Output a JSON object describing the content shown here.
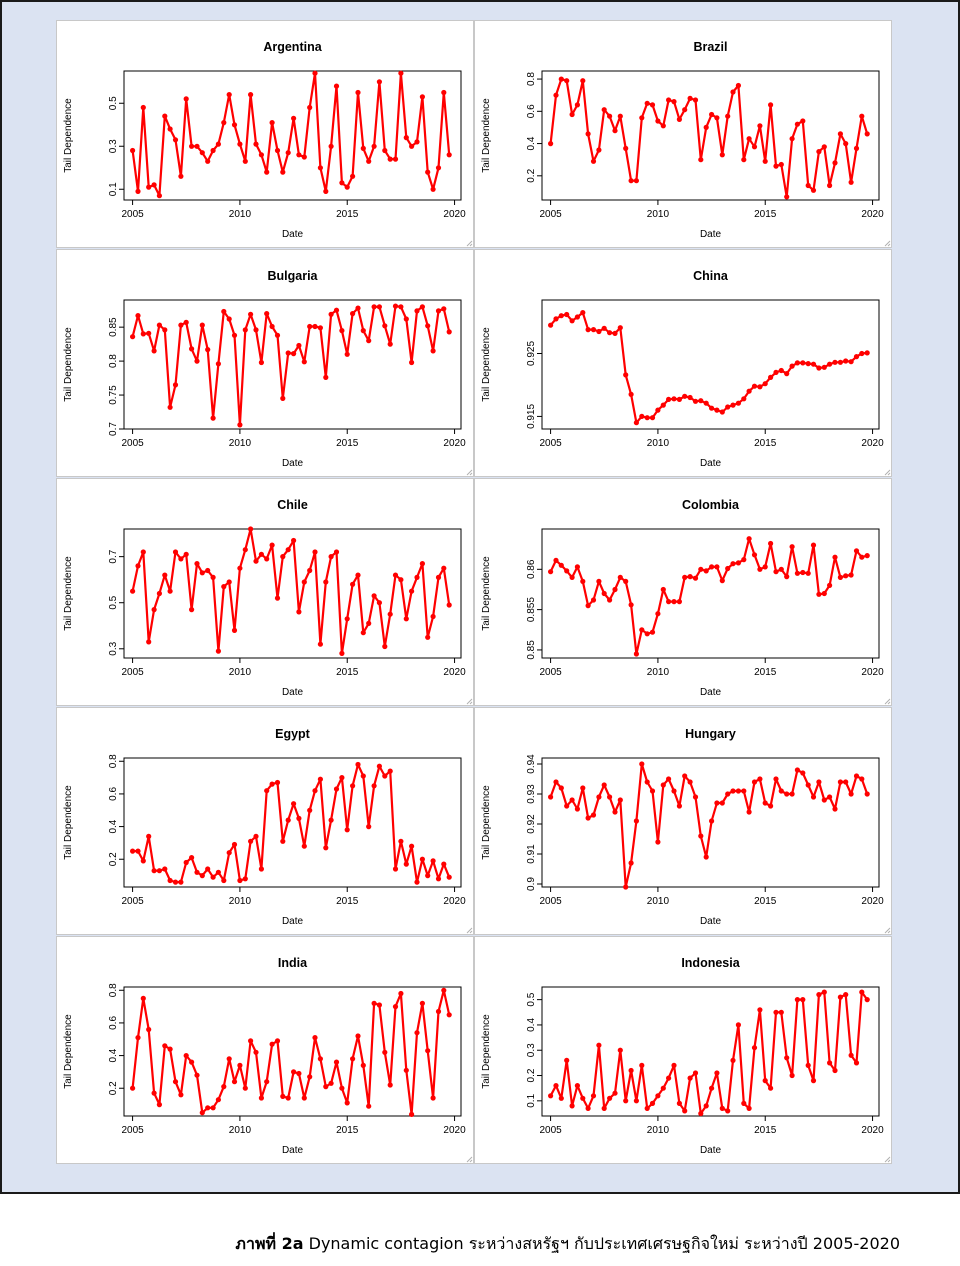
{
  "caption": {
    "label": "ภาพที่ 2a",
    "text": "Dynamic contagion ระหว่างสหรัฐฯ กับประเทศเศรษฐกิจใหม่ ระหว่างปี 2005-2020"
  },
  "chart_data": [
    {
      "type": "line",
      "title": "Argentina",
      "xlabel": "Date",
      "ylabel": "Tail Dependence",
      "xlim": [
        2004.6,
        2020.3
      ],
      "ylim": [
        0.05,
        0.65
      ],
      "xticks": [
        2005,
        2010,
        2015,
        2020
      ],
      "yticks": [
        0.1,
        0.3,
        0.5
      ],
      "x_start": 2005.0,
      "x_step": 0.25,
      "series": [
        {
          "color": "#ff0000",
          "values": [
            0.28,
            0.09,
            0.48,
            0.11,
            0.12,
            0.07,
            0.44,
            0.38,
            0.33,
            0.16,
            0.52,
            0.3,
            0.3,
            0.27,
            0.23,
            0.28,
            0.31,
            0.41,
            0.54,
            0.4,
            0.31,
            0.23,
            0.54,
            0.31,
            0.26,
            0.18,
            0.41,
            0.28,
            0.18,
            0.27,
            0.43,
            0.26,
            0.25,
            0.48,
            0.64,
            0.2,
            0.09,
            0.3,
            0.58,
            0.13,
            0.11,
            0.16,
            0.55,
            0.29,
            0.23,
            0.3,
            0.6,
            0.28,
            0.24,
            0.24,
            0.64,
            0.34,
            0.3,
            0.32,
            0.53,
            0.18,
            0.1,
            0.2,
            0.55,
            0.26
          ]
        }
      ]
    },
    {
      "type": "line",
      "title": "Brazil",
      "xlabel": "Date",
      "ylabel": "Tail Dependence",
      "xlim": [
        2004.6,
        2020.3
      ],
      "ylim": [
        0.05,
        0.85
      ],
      "xticks": [
        2005,
        2010,
        2015,
        2020
      ],
      "yticks": [
        0.2,
        0.4,
        0.6,
        0.8
      ],
      "x_start": 2005.0,
      "x_step": 0.25,
      "series": [
        {
          "color": "#ff0000",
          "values": [
            0.4,
            0.7,
            0.8,
            0.79,
            0.58,
            0.64,
            0.79,
            0.46,
            0.29,
            0.36,
            0.61,
            0.57,
            0.48,
            0.57,
            0.37,
            0.17,
            0.17,
            0.56,
            0.65,
            0.64,
            0.54,
            0.51,
            0.67,
            0.66,
            0.55,
            0.61,
            0.68,
            0.67,
            0.3,
            0.5,
            0.58,
            0.56,
            0.33,
            0.57,
            0.72,
            0.76,
            0.3,
            0.43,
            0.38,
            0.51,
            0.29,
            0.64,
            0.26,
            0.27,
            0.07,
            0.43,
            0.52,
            0.54,
            0.14,
            0.11,
            0.35,
            0.38,
            0.14,
            0.28,
            0.46,
            0.4,
            0.16,
            0.37,
            0.57,
            0.46
          ]
        }
      ]
    },
    {
      "type": "line",
      "title": "Bulgaria",
      "xlabel": "Date",
      "ylabel": "Tail Dependence",
      "xlim": [
        2004.6,
        2020.3
      ],
      "ylim": [
        0.7,
        0.89
      ],
      "xticks": [
        2005,
        2010,
        2015,
        2020
      ],
      "yticks": [
        0.7,
        0.75,
        0.8,
        0.85
      ],
      "x_start": 2005.0,
      "x_step": 0.25,
      "series": [
        {
          "color": "#ff0000",
          "values": [
            0.836,
            0.867,
            0.84,
            0.841,
            0.815,
            0.853,
            0.846,
            0.732,
            0.765,
            0.853,
            0.857,
            0.818,
            0.8,
            0.853,
            0.817,
            0.716,
            0.796,
            0.873,
            0.862,
            0.838,
            0.706,
            0.846,
            0.869,
            0.846,
            0.798,
            0.87,
            0.851,
            0.838,
            0.745,
            0.812,
            0.811,
            0.823,
            0.799,
            0.851,
            0.851,
            0.849,
            0.776,
            0.869,
            0.875,
            0.845,
            0.81,
            0.87,
            0.878,
            0.845,
            0.83,
            0.88,
            0.88,
            0.852,
            0.825,
            0.881,
            0.88,
            0.862,
            0.798,
            0.874,
            0.88,
            0.852,
            0.815,
            0.874,
            0.877,
            0.843
          ]
        }
      ]
    },
    {
      "type": "line",
      "title": "China",
      "xlabel": "Date",
      "ylabel": "Tail Dependence",
      "xlim": [
        2004.6,
        2020.3
      ],
      "ylim": [
        0.913,
        0.9335
      ],
      "xticks": [
        2005,
        2010,
        2015,
        2020
      ],
      "yticks": [
        0.915,
        0.925
      ],
      "x_start": 2005.0,
      "x_step": 0.25,
      "series": [
        {
          "color": "#ff0000",
          "values": [
            0.9295,
            0.9305,
            0.931,
            0.9312,
            0.9302,
            0.9308,
            0.9315,
            0.9288,
            0.9288,
            0.9285,
            0.929,
            0.9283,
            0.9282,
            0.9291,
            0.9216,
            0.9185,
            0.914,
            0.915,
            0.9148,
            0.9148,
            0.916,
            0.9168,
            0.9177,
            0.9178,
            0.9177,
            0.9182,
            0.918,
            0.9174,
            0.9175,
            0.9171,
            0.9163,
            0.916,
            0.9157,
            0.9165,
            0.9168,
            0.9171,
            0.9178,
            0.919,
            0.9198,
            0.9197,
            0.9202,
            0.9212,
            0.922,
            0.9223,
            0.9218,
            0.923,
            0.9235,
            0.9235,
            0.9234,
            0.9233,
            0.9227,
            0.9228,
            0.9233,
            0.9236,
            0.9236,
            0.9238,
            0.9237,
            0.9245,
            0.925,
            0.9251
          ]
        }
      ]
    },
    {
      "type": "line",
      "title": "Chile",
      "xlabel": "Date",
      "ylabel": "Tail Dependence",
      "xlim": [
        2004.6,
        2020.3
      ],
      "ylim": [
        0.26,
        0.82
      ],
      "xticks": [
        2005,
        2010,
        2015,
        2020
      ],
      "yticks": [
        0.3,
        0.5,
        0.7
      ],
      "x_start": 2005.0,
      "x_step": 0.25,
      "series": [
        {
          "color": "#ff0000",
          "values": [
            0.55,
            0.66,
            0.72,
            0.33,
            0.47,
            0.54,
            0.62,
            0.55,
            0.72,
            0.69,
            0.71,
            0.47,
            0.67,
            0.63,
            0.64,
            0.61,
            0.29,
            0.57,
            0.59,
            0.38,
            0.65,
            0.73,
            0.82,
            0.68,
            0.71,
            0.69,
            0.75,
            0.52,
            0.7,
            0.73,
            0.77,
            0.46,
            0.59,
            0.64,
            0.72,
            0.32,
            0.59,
            0.7,
            0.72,
            0.28,
            0.43,
            0.58,
            0.62,
            0.37,
            0.41,
            0.53,
            0.5,
            0.31,
            0.45,
            0.62,
            0.6,
            0.43,
            0.55,
            0.61,
            0.67,
            0.35,
            0.44,
            0.61,
            0.65,
            0.49
          ]
        }
      ]
    },
    {
      "type": "line",
      "title": "Colombia",
      "xlabel": "Date",
      "ylabel": "Tail Dependence",
      "xlim": [
        2004.6,
        2020.3
      ],
      "ylim": [
        0.849,
        0.865
      ],
      "xticks": [
        2005,
        2010,
        2015,
        2020
      ],
      "yticks": [
        0.85,
        0.855,
        0.86
      ],
      "x_start": 2005.0,
      "x_step": 0.25,
      "series": [
        {
          "color": "#ff0000",
          "values": [
            0.8597,
            0.8611,
            0.8605,
            0.8598,
            0.859,
            0.8603,
            0.8585,
            0.8555,
            0.8562,
            0.8585,
            0.857,
            0.8562,
            0.8575,
            0.859,
            0.8585,
            0.8556,
            0.8495,
            0.8525,
            0.852,
            0.8522,
            0.8545,
            0.8575,
            0.856,
            0.856,
            0.856,
            0.859,
            0.8591,
            0.8589,
            0.86,
            0.8598,
            0.8603,
            0.8603,
            0.8586,
            0.8601,
            0.8607,
            0.8608,
            0.8612,
            0.8638,
            0.8618,
            0.86,
            0.8603,
            0.8632,
            0.8597,
            0.86,
            0.8591,
            0.8628,
            0.8595,
            0.8596,
            0.8595,
            0.863,
            0.8569,
            0.857,
            0.858,
            0.8615,
            0.859,
            0.8592,
            0.8593,
            0.8623,
            0.8615,
            0.8617
          ]
        }
      ]
    },
    {
      "type": "line",
      "title": "Egypt",
      "xlabel": "Date",
      "ylabel": "Tail Dependence",
      "xlim": [
        2004.6,
        2020.3
      ],
      "ylim": [
        0.03,
        0.82
      ],
      "xticks": [
        2005,
        2010,
        2015,
        2020
      ],
      "yticks": [
        0.2,
        0.4,
        0.6,
        0.8
      ],
      "x_start": 2005.0,
      "x_step": 0.25,
      "series": [
        {
          "color": "#ff0000",
          "values": [
            0.25,
            0.25,
            0.19,
            0.34,
            0.13,
            0.13,
            0.14,
            0.07,
            0.06,
            0.06,
            0.18,
            0.21,
            0.12,
            0.1,
            0.14,
            0.09,
            0.12,
            0.07,
            0.24,
            0.29,
            0.07,
            0.08,
            0.31,
            0.34,
            0.14,
            0.62,
            0.66,
            0.67,
            0.31,
            0.44,
            0.54,
            0.45,
            0.28,
            0.5,
            0.62,
            0.69,
            0.27,
            0.44,
            0.63,
            0.7,
            0.38,
            0.65,
            0.78,
            0.71,
            0.4,
            0.65,
            0.77,
            0.71,
            0.74,
            0.14,
            0.31,
            0.17,
            0.28,
            0.06,
            0.2,
            0.1,
            0.19,
            0.08,
            0.17,
            0.09
          ]
        }
      ]
    },
    {
      "type": "line",
      "title": "Hungary",
      "xlabel": "Date",
      "ylabel": "Tail Dependence",
      "xlim": [
        2004.6,
        2020.3
      ],
      "ylim": [
        0.899,
        0.942
      ],
      "xticks": [
        2005,
        2010,
        2015,
        2020
      ],
      "yticks": [
        0.9,
        0.91,
        0.92,
        0.93,
        0.94
      ],
      "x_start": 2005.0,
      "x_step": 0.25,
      "series": [
        {
          "color": "#ff0000",
          "values": [
            0.929,
            0.934,
            0.932,
            0.926,
            0.928,
            0.925,
            0.932,
            0.922,
            0.923,
            0.929,
            0.933,
            0.929,
            0.924,
            0.928,
            0.899,
            0.907,
            0.921,
            0.94,
            0.934,
            0.931,
            0.914,
            0.933,
            0.935,
            0.931,
            0.926,
            0.936,
            0.934,
            0.929,
            0.916,
            0.909,
            0.921,
            0.927,
            0.927,
            0.93,
            0.931,
            0.931,
            0.931,
            0.924,
            0.934,
            0.935,
            0.927,
            0.926,
            0.935,
            0.931,
            0.93,
            0.93,
            0.938,
            0.937,
            0.933,
            0.929,
            0.934,
            0.928,
            0.929,
            0.925,
            0.934,
            0.934,
            0.93,
            0.936,
            0.935,
            0.93
          ]
        }
      ]
    },
    {
      "type": "line",
      "title": "India",
      "xlabel": "Date",
      "ylabel": "Tail Dependence",
      "xlim": [
        2004.6,
        2020.3
      ],
      "ylim": [
        0.03,
        0.82
      ],
      "xticks": [
        2005,
        2010,
        2015,
        2020
      ],
      "yticks": [
        0.2,
        0.4,
        0.6,
        0.8
      ],
      "x_start": 2005.0,
      "x_step": 0.25,
      "series": [
        {
          "color": "#ff0000",
          "values": [
            0.2,
            0.51,
            0.75,
            0.56,
            0.17,
            0.1,
            0.46,
            0.44,
            0.24,
            0.16,
            0.4,
            0.36,
            0.28,
            0.05,
            0.08,
            0.08,
            0.13,
            0.21,
            0.38,
            0.24,
            0.34,
            0.2,
            0.49,
            0.42,
            0.14,
            0.24,
            0.47,
            0.49,
            0.15,
            0.14,
            0.3,
            0.29,
            0.14,
            0.27,
            0.51,
            0.38,
            0.21,
            0.23,
            0.36,
            0.2,
            0.11,
            0.38,
            0.52,
            0.34,
            0.09,
            0.72,
            0.71,
            0.42,
            0.22,
            0.7,
            0.78,
            0.31,
            0.04,
            0.54,
            0.72,
            0.43,
            0.14,
            0.67,
            0.8,
            0.65
          ]
        }
      ]
    },
    {
      "type": "line",
      "title": "Indonesia",
      "xlabel": "Date",
      "ylabel": "Tail Dependence",
      "xlim": [
        2004.6,
        2020.3
      ],
      "ylim": [
        0.04,
        0.55
      ],
      "xticks": [
        2005,
        2010,
        2015,
        2020
      ],
      "yticks": [
        0.1,
        0.2,
        0.3,
        0.4,
        0.5
      ],
      "x_start": 2005.0,
      "x_step": 0.25,
      "series": [
        {
          "color": "#ff0000",
          "values": [
            0.12,
            0.16,
            0.11,
            0.26,
            0.08,
            0.16,
            0.11,
            0.07,
            0.12,
            0.32,
            0.07,
            0.11,
            0.13,
            0.3,
            0.1,
            0.22,
            0.1,
            0.24,
            0.07,
            0.09,
            0.12,
            0.15,
            0.19,
            0.24,
            0.09,
            0.06,
            0.19,
            0.21,
            0.05,
            0.08,
            0.15,
            0.21,
            0.07,
            0.06,
            0.26,
            0.4,
            0.09,
            0.07,
            0.31,
            0.46,
            0.18,
            0.15,
            0.45,
            0.45,
            0.27,
            0.2,
            0.5,
            0.5,
            0.24,
            0.18,
            0.52,
            0.53,
            0.25,
            0.22,
            0.51,
            0.52,
            0.28,
            0.25,
            0.53,
            0.5
          ]
        }
      ]
    }
  ]
}
